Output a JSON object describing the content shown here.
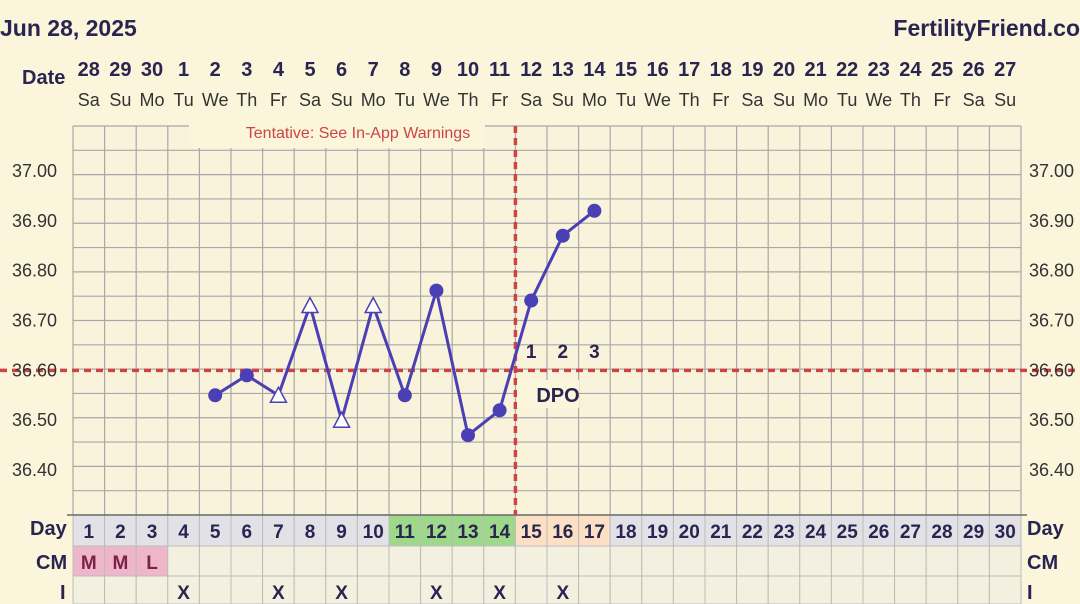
{
  "header": {
    "date": "Jun 28, 2025",
    "brand": "FertilityFriend.co"
  },
  "labels": {
    "date": "Date",
    "day": "Day",
    "cm": "CM",
    "i": "I",
    "dpo": "DPO",
    "tentative": "Tentative: See In-App Warnings"
  },
  "colors": {
    "line": "#4b3fb5",
    "coverline": "#cc4444",
    "grid": "#a8a8a8",
    "plot_bg": "#f8f3da",
    "green": "#9ed98b",
    "orange": "#fbe0c4",
    "pink": "#efb5c8",
    "text": "#2a2550"
  },
  "chart_data": {
    "type": "line",
    "dates": [
      "28",
      "29",
      "30",
      "1",
      "2",
      "3",
      "4",
      "5",
      "6",
      "7",
      "8",
      "9",
      "10",
      "11",
      "12",
      "13",
      "14",
      "15",
      "16",
      "17",
      "18",
      "19",
      "20",
      "21",
      "22",
      "23",
      "24",
      "25",
      "26",
      "27"
    ],
    "weekdays": [
      "Sa",
      "Su",
      "Mo",
      "Tu",
      "We",
      "Th",
      "Fr",
      "Sa",
      "Su",
      "Mo",
      "Tu",
      "We",
      "Th",
      "Fr",
      "Sa",
      "Su",
      "Mo",
      "Tu",
      "We",
      "Th",
      "Fr",
      "Sa",
      "Su",
      "Mo",
      "Tu",
      "We",
      "Th",
      "Fr",
      "Sa",
      "Su"
    ],
    "cycle_days": [
      1,
      2,
      3,
      4,
      5,
      6,
      7,
      8,
      9,
      10,
      11,
      12,
      13,
      14,
      15,
      16,
      17,
      18,
      19,
      20,
      21,
      22,
      23,
      24,
      25,
      26,
      27,
      28,
      29,
      30
    ],
    "y_ticks": [
      "37.00",
      "36.90",
      "36.80",
      "36.70",
      "36.60",
      "36.50",
      "36.40"
    ],
    "ylim": [
      36.31,
      37.09
    ],
    "temps": [
      {
        "day": 5,
        "value": 36.55,
        "marker": "circle"
      },
      {
        "day": 6,
        "value": 36.59,
        "marker": "circle"
      },
      {
        "day": 7,
        "value": 36.55,
        "marker": "triangle"
      },
      {
        "day": 8,
        "value": 36.73,
        "marker": "triangle"
      },
      {
        "day": 9,
        "value": 36.5,
        "marker": "triangle"
      },
      {
        "day": 10,
        "value": 36.73,
        "marker": "triangle"
      },
      {
        "day": 11,
        "value": 36.55,
        "marker": "circle"
      },
      {
        "day": 12,
        "value": 36.76,
        "marker": "circle"
      },
      {
        "day": 13,
        "value": 36.47,
        "marker": "circle"
      },
      {
        "day": 14,
        "value": 36.52,
        "marker": "circle"
      },
      {
        "day": 15,
        "value": 36.74,
        "marker": "circle"
      },
      {
        "day": 16,
        "value": 36.87,
        "marker": "circle"
      },
      {
        "day": 17,
        "value": 36.92,
        "marker": "circle"
      }
    ],
    "coverline": 36.6,
    "ovulation_day": 14,
    "dpo": [
      {
        "day": 15,
        "label": "1"
      },
      {
        "day": 16,
        "label": "2"
      },
      {
        "day": 17,
        "label": "3"
      }
    ],
    "fertile_days_green": [
      11,
      12,
      13,
      14
    ],
    "post_ovulation_days_orange": [
      15,
      16,
      17
    ],
    "cm": [
      {
        "day": 1,
        "label": "M"
      },
      {
        "day": 2,
        "label": "M"
      },
      {
        "day": 3,
        "label": "L"
      }
    ],
    "intercourse": [
      {
        "day": 4,
        "label": "X"
      },
      {
        "day": 7,
        "label": "X"
      },
      {
        "day": 9,
        "label": "X"
      },
      {
        "day": 12,
        "label": "X"
      },
      {
        "day": 14,
        "label": "X"
      },
      {
        "day": 16,
        "label": "X"
      }
    ]
  }
}
